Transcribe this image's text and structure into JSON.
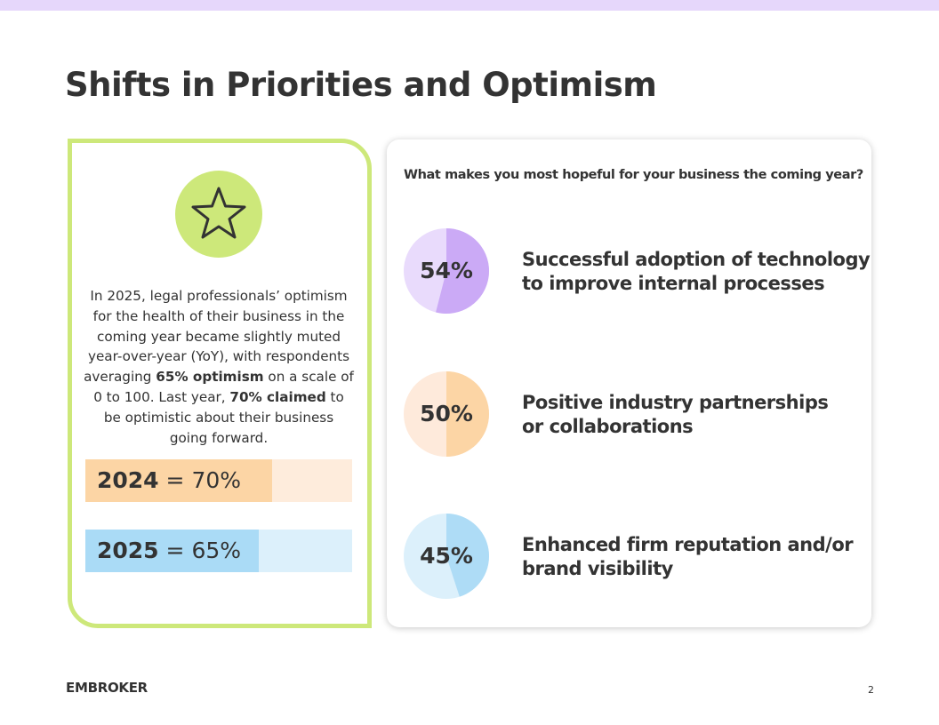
{
  "header": {
    "title": "Shifts in Priorities and Optimism"
  },
  "summary": {
    "body": [
      "In 2025, legal professionals’ optimism for the health of their business in the coming year became slightly muted year-over-year (YoY), with respondents averaging ",
      "65% optimism",
      " on a scale of 0 to 100. Last year, ",
      "70% claimed",
      " to be optimistic about their business going forward."
    ],
    "bars": [
      {
        "year": "2024",
        "separator": "=",
        "value": 70,
        "value_label": "70%",
        "color": "#fcd5a5",
        "track_color": "#feecdc"
      },
      {
        "year": "2025",
        "separator": "=",
        "value": 65,
        "value_label": "65%",
        "color": "#aadbf6",
        "track_color": "#dcf0fb"
      }
    ]
  },
  "survey": {
    "question": "What makes you most hopeful for your business the coming year?",
    "items": [
      {
        "value": 54,
        "value_label": "54%",
        "color": "#cbaaf6",
        "track_color": "#e9dbfc",
        "lines": [
          "Successful adoption of technology",
          "to improve internal processes"
        ]
      },
      {
        "value": 50,
        "value_label": "50%",
        "color": "#fcd5a5",
        "track_color": "#feeadb",
        "lines": [
          "Positive industry partnerships",
          "or collaborations"
        ]
      },
      {
        "value": 45,
        "value_label": "45%",
        "color": "#aedcf6",
        "track_color": "#dcf0fb",
        "lines": [
          "Enhanced firm reputation and/or",
          "brand visibility"
        ]
      }
    ]
  },
  "footer": {
    "brand": "EMBROKER",
    "page": "2"
  }
}
